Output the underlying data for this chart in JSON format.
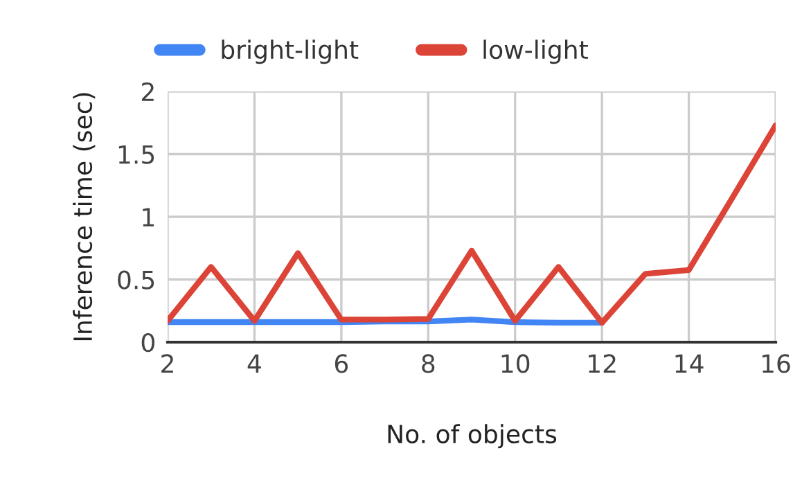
{
  "chart_data": {
    "type": "line",
    "xlabel": "No. of objects",
    "ylabel": "Inference time (sec)",
    "x": [
      2,
      3,
      4,
      5,
      6,
      7,
      8,
      9,
      10,
      11,
      12,
      13,
      14,
      15,
      16
    ],
    "series": [
      {
        "name": "bright-light",
        "color": "#4285f4",
        "values": [
          0.16,
          0.16,
          0.16,
          0.16,
          0.16,
          0.165,
          0.165,
          0.18,
          0.16,
          0.155,
          0.155,
          null,
          null,
          null,
          null
        ]
      },
      {
        "name": "low-light",
        "color": "#db4437",
        "values": [
          0.17,
          0.6,
          0.17,
          0.71,
          0.18,
          0.18,
          0.185,
          0.73,
          0.17,
          0.6,
          0.155,
          0.545,
          0.575,
          1.15,
          1.73
        ]
      }
    ],
    "xlim": [
      2,
      16
    ],
    "xticks": [
      2,
      4,
      6,
      8,
      10,
      12,
      14,
      16
    ],
    "ylim": [
      0,
      2
    ],
    "yticks": [
      0,
      0.5,
      1,
      1.5,
      2
    ],
    "grid": true,
    "legend": "top left"
  }
}
